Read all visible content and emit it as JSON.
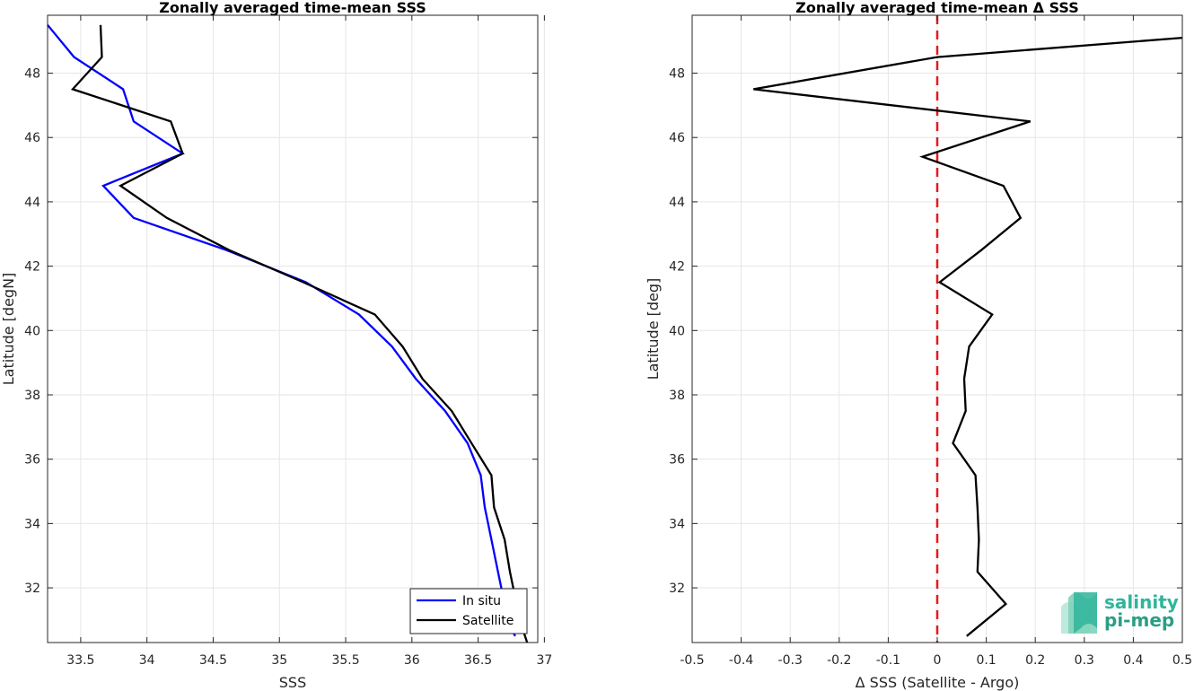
{
  "chart_data": [
    {
      "type": "line",
      "title": "Zonally averaged time-mean SSS",
      "xlabel": "SSS",
      "ylabel": "Latitude [degN]",
      "xlim": [
        33.25,
        36.95
      ],
      "ylim": [
        30.3,
        49.8
      ],
      "xticks": [
        "33.5",
        "34",
        "34.5",
        "35",
        "35.5",
        "36",
        "36.5",
        "37"
      ],
      "yticks": [
        "32",
        "34",
        "36",
        "38",
        "40",
        "42",
        "44",
        "46",
        "48"
      ],
      "grid": true,
      "legend": {
        "placement": "bottom-right",
        "entries": [
          "In situ",
          "Satellite"
        ]
      },
      "series": [
        {
          "name": "In situ",
          "color": "#0000ff",
          "x": [
            33.25,
            33.45,
            33.82,
            33.9,
            34.27,
            33.67,
            33.9,
            34.6,
            35.2,
            35.6,
            35.85,
            36.03,
            36.25,
            36.42,
            36.52,
            36.55,
            36.6,
            36.65,
            36.7,
            36.74,
            36.78
          ],
          "y": [
            49.5,
            48.5,
            47.5,
            46.5,
            45.5,
            44.5,
            43.5,
            42.5,
            41.5,
            40.5,
            39.5,
            38.5,
            37.5,
            36.5,
            35.5,
            34.5,
            33.5,
            32.5,
            31.5,
            30.8,
            30.5
          ]
        },
        {
          "name": "Satellite",
          "color": "#000000",
          "x": [
            33.65,
            33.66,
            33.44,
            34.18,
            34.27,
            33.8,
            34.15,
            34.62,
            35.18,
            35.72,
            35.93,
            36.08,
            36.3,
            36.45,
            36.6,
            36.62,
            36.7,
            36.74,
            36.79,
            36.83,
            36.87
          ],
          "y": [
            49.5,
            48.5,
            47.5,
            46.5,
            45.5,
            44.5,
            43.5,
            42.5,
            41.5,
            40.5,
            39.5,
            38.5,
            37.5,
            36.5,
            35.5,
            34.5,
            33.5,
            32.5,
            31.5,
            30.8,
            30.3
          ]
        }
      ]
    },
    {
      "type": "line",
      "title": "Zonally averaged time-mean Δ SSS",
      "xlabel": "Δ SSS (Satellite - Argo)",
      "ylabel": "Latitude [deg]",
      "xlim": [
        -0.5,
        0.5
      ],
      "ylim": [
        30.3,
        49.8
      ],
      "xticks": [
        "-0.5",
        "-0.4",
        "-0.3",
        "-0.2",
        "-0.1",
        "0",
        "0.1",
        "0.2",
        "0.3",
        "0.4",
        "0.5"
      ],
      "yticks": [
        "32",
        "34",
        "36",
        "38",
        "40",
        "42",
        "44",
        "46",
        "48"
      ],
      "grid": true,
      "reference_line": {
        "x": 0,
        "color": "#e41a1c",
        "style": "dashed"
      },
      "series": [
        {
          "name": "",
          "color": "#000000",
          "x": [
            0.5,
            0.0,
            -0.375,
            0.19,
            -0.03,
            0.135,
            0.17,
            0.09,
            0.005,
            0.112,
            0.065,
            0.055,
            0.058,
            0.032,
            0.078,
            0.082,
            0.085,
            0.082,
            0.14,
            0.06
          ],
          "y": [
            49.1,
            48.5,
            47.5,
            46.5,
            45.4,
            44.5,
            43.5,
            42.5,
            41.5,
            40.5,
            39.5,
            38.5,
            37.5,
            36.5,
            35.5,
            34.5,
            33.5,
            32.5,
            31.5,
            30.5
          ]
        }
      ]
    }
  ],
  "logo": {
    "line1": "salinity",
    "line2": "pi-mep"
  }
}
